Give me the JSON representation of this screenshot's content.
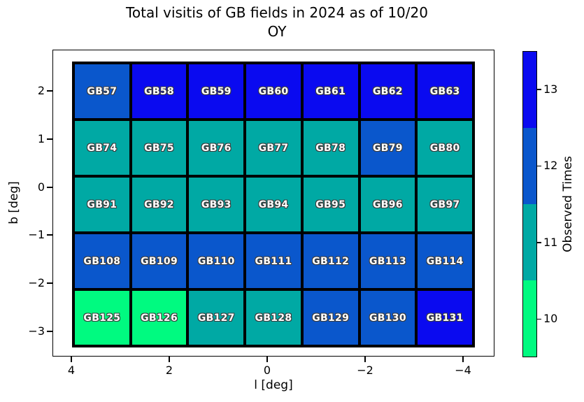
{
  "figure": {
    "title_line1": "Total visitis of GB fields in 2024 as of 10/20",
    "title_line2": "OY"
  },
  "chart_data": {
    "type": "heatmap",
    "title": "Total visitis of GB fields in 2024 as of 10/20 OY",
    "xlabel": "l [deg]",
    "ylabel": "b [deg]",
    "x_ticks": [
      "4",
      "2",
      "0",
      "−2",
      "−4"
    ],
    "y_ticks": [
      "2",
      "1",
      "0",
      "−1",
      "−2",
      "−3"
    ],
    "x_axis_reversed": true,
    "grid_on": false,
    "colorbar": {
      "label": "Observed Times",
      "ticks_top_to_bottom": [
        "13",
        "12",
        "11",
        "10"
      ],
      "value_colors": {
        "10": "#00fa80",
        "11": "#00a9a4",
        "12": "#0a57cc",
        "13": "#0a0af0"
      }
    },
    "grid": {
      "columns": 7,
      "rows": [
        {
          "fields": [
            {
              "name": "GB57",
              "value": 12
            },
            {
              "name": "GB58",
              "value": 13
            },
            {
              "name": "GB59",
              "value": 13
            },
            {
              "name": "GB60",
              "value": 13
            },
            {
              "name": "GB61",
              "value": 13
            },
            {
              "name": "GB62",
              "value": 13
            },
            {
              "name": "GB63",
              "value": 13
            }
          ]
        },
        {
          "fields": [
            {
              "name": "GB74",
              "value": 11
            },
            {
              "name": "GB75",
              "value": 11
            },
            {
              "name": "GB76",
              "value": 11
            },
            {
              "name": "GB77",
              "value": 11
            },
            {
              "name": "GB78",
              "value": 11
            },
            {
              "name": "GB79",
              "value": 12
            },
            {
              "name": "GB80",
              "value": 11
            }
          ]
        },
        {
          "fields": [
            {
              "name": "GB91",
              "value": 11
            },
            {
              "name": "GB92",
              "value": 11
            },
            {
              "name": "GB93",
              "value": 11
            },
            {
              "name": "GB94",
              "value": 11
            },
            {
              "name": "GB95",
              "value": 11
            },
            {
              "name": "GB96",
              "value": 11
            },
            {
              "name": "GB97",
              "value": 11
            }
          ]
        },
        {
          "fields": [
            {
              "name": "GB108",
              "value": 12
            },
            {
              "name": "GB109",
              "value": 12
            },
            {
              "name": "GB110",
              "value": 12
            },
            {
              "name": "GB111",
              "value": 12
            },
            {
              "name": "GB112",
              "value": 12
            },
            {
              "name": "GB113",
              "value": 12
            },
            {
              "name": "GB114",
              "value": 12
            }
          ]
        },
        {
          "fields": [
            {
              "name": "GB125",
              "value": 10
            },
            {
              "name": "GB126",
              "value": 10
            },
            {
              "name": "GB127",
              "value": 11
            },
            {
              "name": "GB128",
              "value": 11
            },
            {
              "name": "GB129",
              "value": 12
            },
            {
              "name": "GB130",
              "value": 12
            },
            {
              "name": "GB131",
              "value": 13
            }
          ]
        }
      ]
    }
  }
}
